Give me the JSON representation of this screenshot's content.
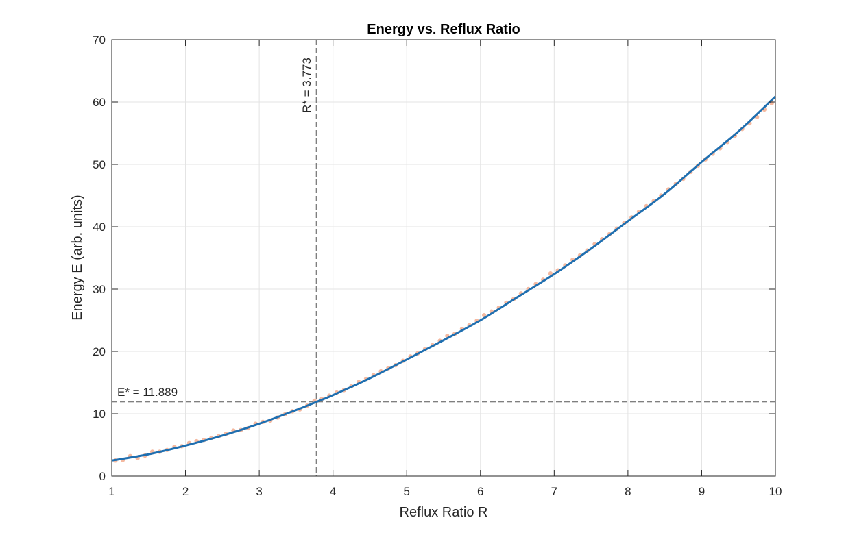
{
  "chart_data": {
    "type": "line",
    "title": "Energy vs. Reflux Ratio",
    "xlabel": "Reflux Ratio R",
    "ylabel": "Energy E (arb. units)",
    "xlim": [
      1,
      10
    ],
    "ylim": [
      0,
      70
    ],
    "xticks": [
      1,
      2,
      3,
      4,
      5,
      6,
      7,
      8,
      9,
      10
    ],
    "yticks": [
      0,
      10,
      20,
      30,
      40,
      50,
      60,
      70
    ],
    "grid": true,
    "colors": {
      "fit": "#1f6fb0",
      "data": "#f4b9a0",
      "refline": "#555555"
    },
    "series": [
      {
        "kind": "scatter",
        "x": [
          1.05,
          1.15,
          1.25,
          1.35,
          1.45,
          1.55,
          1.65,
          1.75,
          1.85,
          1.95,
          2.05,
          2.15,
          2.25,
          2.35,
          2.45,
          2.55,
          2.65,
          2.75,
          2.85,
          2.95,
          3.05,
          3.15,
          3.25,
          3.35,
          3.45,
          3.55,
          3.65,
          3.75,
          3.85,
          3.95,
          4.05,
          4.15,
          4.25,
          4.35,
          4.45,
          4.55,
          4.65,
          4.75,
          4.85,
          4.95,
          5.05,
          5.15,
          5.25,
          5.35,
          5.45,
          5.55,
          5.65,
          5.75,
          5.85,
          5.95,
          6.05,
          6.15,
          6.25,
          6.35,
          6.45,
          6.55,
          6.65,
          6.75,
          6.85,
          6.95,
          7.05,
          7.15,
          7.25,
          7.35,
          7.45,
          7.55,
          7.65,
          7.75,
          7.85,
          7.95,
          8.05,
          8.15,
          8.25,
          8.35,
          8.45,
          8.55,
          8.65,
          8.75,
          8.85,
          8.95,
          9.05,
          9.15,
          9.25,
          9.35,
          9.45,
          9.55,
          9.65,
          9.75,
          9.85,
          9.95
        ],
        "y": [
          2.5,
          2.6,
          3.2,
          2.9,
          3.3,
          3.9,
          3.9,
          4.2,
          4.7,
          4.8,
          5.3,
          5.6,
          5.8,
          6.1,
          6.4,
          6.8,
          7.3,
          7.4,
          7.7,
          8.4,
          8.7,
          8.9,
          9.4,
          9.9,
          10.4,
          10.7,
          11.3,
          12.1,
          12.4,
          12.9,
          13.4,
          13.8,
          14.4,
          15.1,
          15.6,
          16.2,
          16.8,
          17.3,
          17.8,
          18.5,
          19.2,
          19.7,
          20.4,
          21.0,
          21.7,
          22.5,
          22.8,
          23.6,
          24.2,
          24.9,
          25.8,
          26.4,
          27.0,
          27.8,
          28.4,
          29.3,
          30.0,
          30.8,
          31.5,
          32.5,
          33.0,
          33.8,
          34.7,
          35.4,
          36.2,
          37.2,
          38.0,
          38.8,
          39.7,
          40.6,
          41.5,
          42.4,
          43.3,
          44.1,
          45.0,
          46.0,
          46.9,
          47.7,
          48.8,
          49.8,
          50.8,
          51.7,
          52.6,
          53.6,
          54.6,
          55.7,
          56.6,
          57.6,
          58.8,
          59.8
        ]
      },
      {
        "kind": "fit",
        "x": [
          1.0,
          1.5,
          2.0,
          2.5,
          3.0,
          3.5,
          3.773,
          4.0,
          4.5,
          5.0,
          5.5,
          6.0,
          6.5,
          7.0,
          7.5,
          8.0,
          8.5,
          9.0,
          9.5,
          10.0
        ],
        "y": [
          2.5,
          3.5,
          4.9,
          6.5,
          8.4,
          10.6,
          11.889,
          13.0,
          15.7,
          18.7,
          21.8,
          25.0,
          28.7,
          32.4,
          36.5,
          40.9,
          45.3,
          50.4,
          55.3,
          60.9
        ]
      }
    ],
    "annotations": {
      "r_star": {
        "x": 3.773,
        "label": "R* = 3.773"
      },
      "e_star": {
        "y": 11.889,
        "label": "E* = 11.889"
      }
    }
  }
}
